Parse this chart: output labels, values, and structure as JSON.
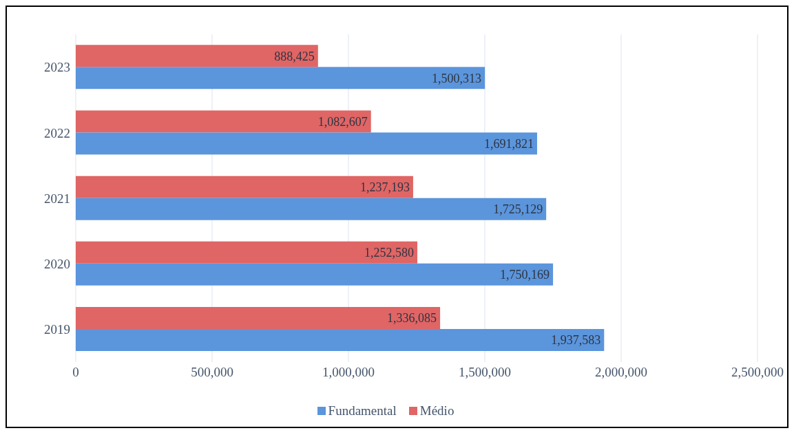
{
  "chart_data": {
    "type": "bar",
    "orientation": "horizontal",
    "categories": [
      "2023",
      "2022",
      "2021",
      "2020",
      "2019"
    ],
    "series": [
      {
        "name": "Fundamental",
        "color": "#5b95dc",
        "values": [
          1500313,
          1691821,
          1725129,
          1750169,
          1937583
        ],
        "value_labels": [
          "1,500,313",
          "1,691,821",
          "1,725,129",
          "1,750,169",
          "1,937,583"
        ]
      },
      {
        "name": "Médio",
        "color": "#e06565",
        "values": [
          888425,
          1082607,
          1237193,
          1252580,
          1336085
        ],
        "value_labels": [
          "888,425",
          "1,082,607",
          "1,237,193",
          "1,252,580",
          "1,336,085"
        ]
      }
    ],
    "xlim": [
      0,
      2500000
    ],
    "xticks": [
      {
        "value": 0,
        "label": "0"
      },
      {
        "value": 500000,
        "label": "500,000"
      },
      {
        "value": 1000000,
        "label": "1,000,000"
      },
      {
        "value": 1500000,
        "label": "1,500,000"
      },
      {
        "value": 2000000,
        "label": "2,000,000"
      },
      {
        "value": 2500000,
        "label": "2,500,000"
      }
    ],
    "grid": "x",
    "legend": "bottom"
  }
}
